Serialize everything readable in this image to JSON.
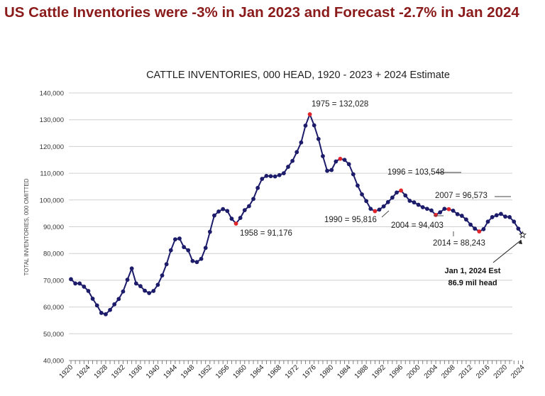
{
  "headline": "US Cattle Inventories were -3% in Jan 2023 and Forecast -2.7% in Jan 2024",
  "chart_data": {
    "type": "line",
    "title": "CATTLE INVENTORIES, 000 HEAD, 1920 - 2023 + 2024 Estimate",
    "ylabel": "TOTAL INVENTORIES, 000 OMITTED",
    "xlabel": "",
    "ylim": [
      40000,
      140000
    ],
    "y_ticks": [
      "40,000",
      "50,000",
      "60,000",
      "70,000",
      "80,000",
      "90,000",
      "100,000",
      "110,000",
      "120,000",
      "130,000",
      "140,000"
    ],
    "x_tick_labels": [
      "1920",
      "1924",
      "1928",
      "1932",
      "1936",
      "1940",
      "1944",
      "1948",
      "1952",
      "1956",
      "1960",
      "1964",
      "1968",
      "1972",
      "1976",
      "1980",
      "1984",
      "1988",
      "1992",
      "1996",
      "2000",
      "2004",
      "2008",
      "2012",
      "2016",
      "2020",
      "2024"
    ],
    "grid": "horizontal",
    "line_color": "#1c1c6b",
    "highlight_color": "#e0262b",
    "series": [
      {
        "years": [
          1920,
          1921,
          1922,
          1923,
          1924,
          1925,
          1926,
          1927,
          1928,
          1929,
          1930,
          1931,
          1932,
          1933,
          1934,
          1935,
          1936,
          1937,
          1938,
          1939,
          1940,
          1941,
          1942,
          1943,
          1944,
          1945,
          1946,
          1947,
          1948,
          1949,
          1950,
          1951,
          1952,
          1953,
          1954,
          1955,
          1956,
          1957,
          1958,
          1959,
          1960,
          1961,
          1962,
          1963,
          1964,
          1965,
          1966,
          1967,
          1968,
          1969,
          1970,
          1971,
          1972,
          1973,
          1974,
          1975,
          1976,
          1977,
          1978,
          1979,
          1980,
          1981,
          1982,
          1983,
          1984,
          1985,
          1986,
          1987,
          1988,
          1989,
          1990,
          1991,
          1992,
          1993,
          1994,
          1995,
          1996,
          1997,
          1998,
          1999,
          2000,
          2001,
          2002,
          2003,
          2004,
          2005,
          2006,
          2007,
          2008,
          2009,
          2010,
          2011,
          2012,
          2013,
          2014,
          2015,
          2016,
          2017,
          2018,
          2019,
          2020,
          2021,
          2022,
          2023
        ],
        "values": [
          70400,
          68800,
          68800,
          67600,
          66000,
          63100,
          60600,
          57800,
          57300,
          58900,
          61000,
          63000,
          65800,
          70200,
          74400,
          68800,
          67800,
          66100,
          65200,
          66000,
          68300,
          71800,
          76000,
          81200,
          85300,
          85600,
          82400,
          81200,
          77200,
          76800,
          78000,
          82100,
          88100,
          94200,
          95700,
          96600,
          95900,
          93000,
          91176,
          93300,
          96200,
          97700,
          100400,
          104500,
          107900,
          109000,
          108900,
          108800,
          109300,
          110000,
          112400,
          114600,
          117900,
          121500,
          127800,
          132028,
          127900,
          122800,
          116400,
          110900,
          111200,
          114400,
          115400,
          115000,
          113400,
          109600,
          105400,
          102100,
          99600,
          96700,
          95816,
          96400,
          97600,
          99200,
          100900,
          102800,
          103548,
          101700,
          99700,
          99100,
          98200,
          97300,
          96700,
          96100,
          94403,
          95400,
          96700,
          96573,
          96000,
          94700,
          94100,
          92700,
          90800,
          89300,
          88243,
          89100,
          91900,
          93600,
          94300,
          94800,
          93800,
          93600,
          91900,
          89300
        ],
        "estimate": {
          "year": 2024,
          "value": 86900
        }
      }
    ],
    "highlights": [
      {
        "year": 1958,
        "value": 91176,
        "label": "1958 = 91,176"
      },
      {
        "year": 1975,
        "value": 132028,
        "label": "1975 = 132,028"
      },
      {
        "year": 1982,
        "value": 115400,
        "label": ""
      },
      {
        "year": 1990,
        "value": 95816,
        "label": "1990 = 95,816"
      },
      {
        "year": 1996,
        "value": 103548,
        "label": "1996 = 103,548"
      },
      {
        "year": 2004,
        "value": 94403,
        "label": "2004 = 94,403"
      },
      {
        "year": 2007,
        "value": 96573,
        "label": "2007 = 96,573"
      },
      {
        "year": 2014,
        "value": 88243,
        "label": "2014 = 88,243"
      }
    ],
    "estimate_annotation": {
      "line1": "Jan 1, 2024 Est",
      "line2": "86.9 mil head"
    }
  }
}
